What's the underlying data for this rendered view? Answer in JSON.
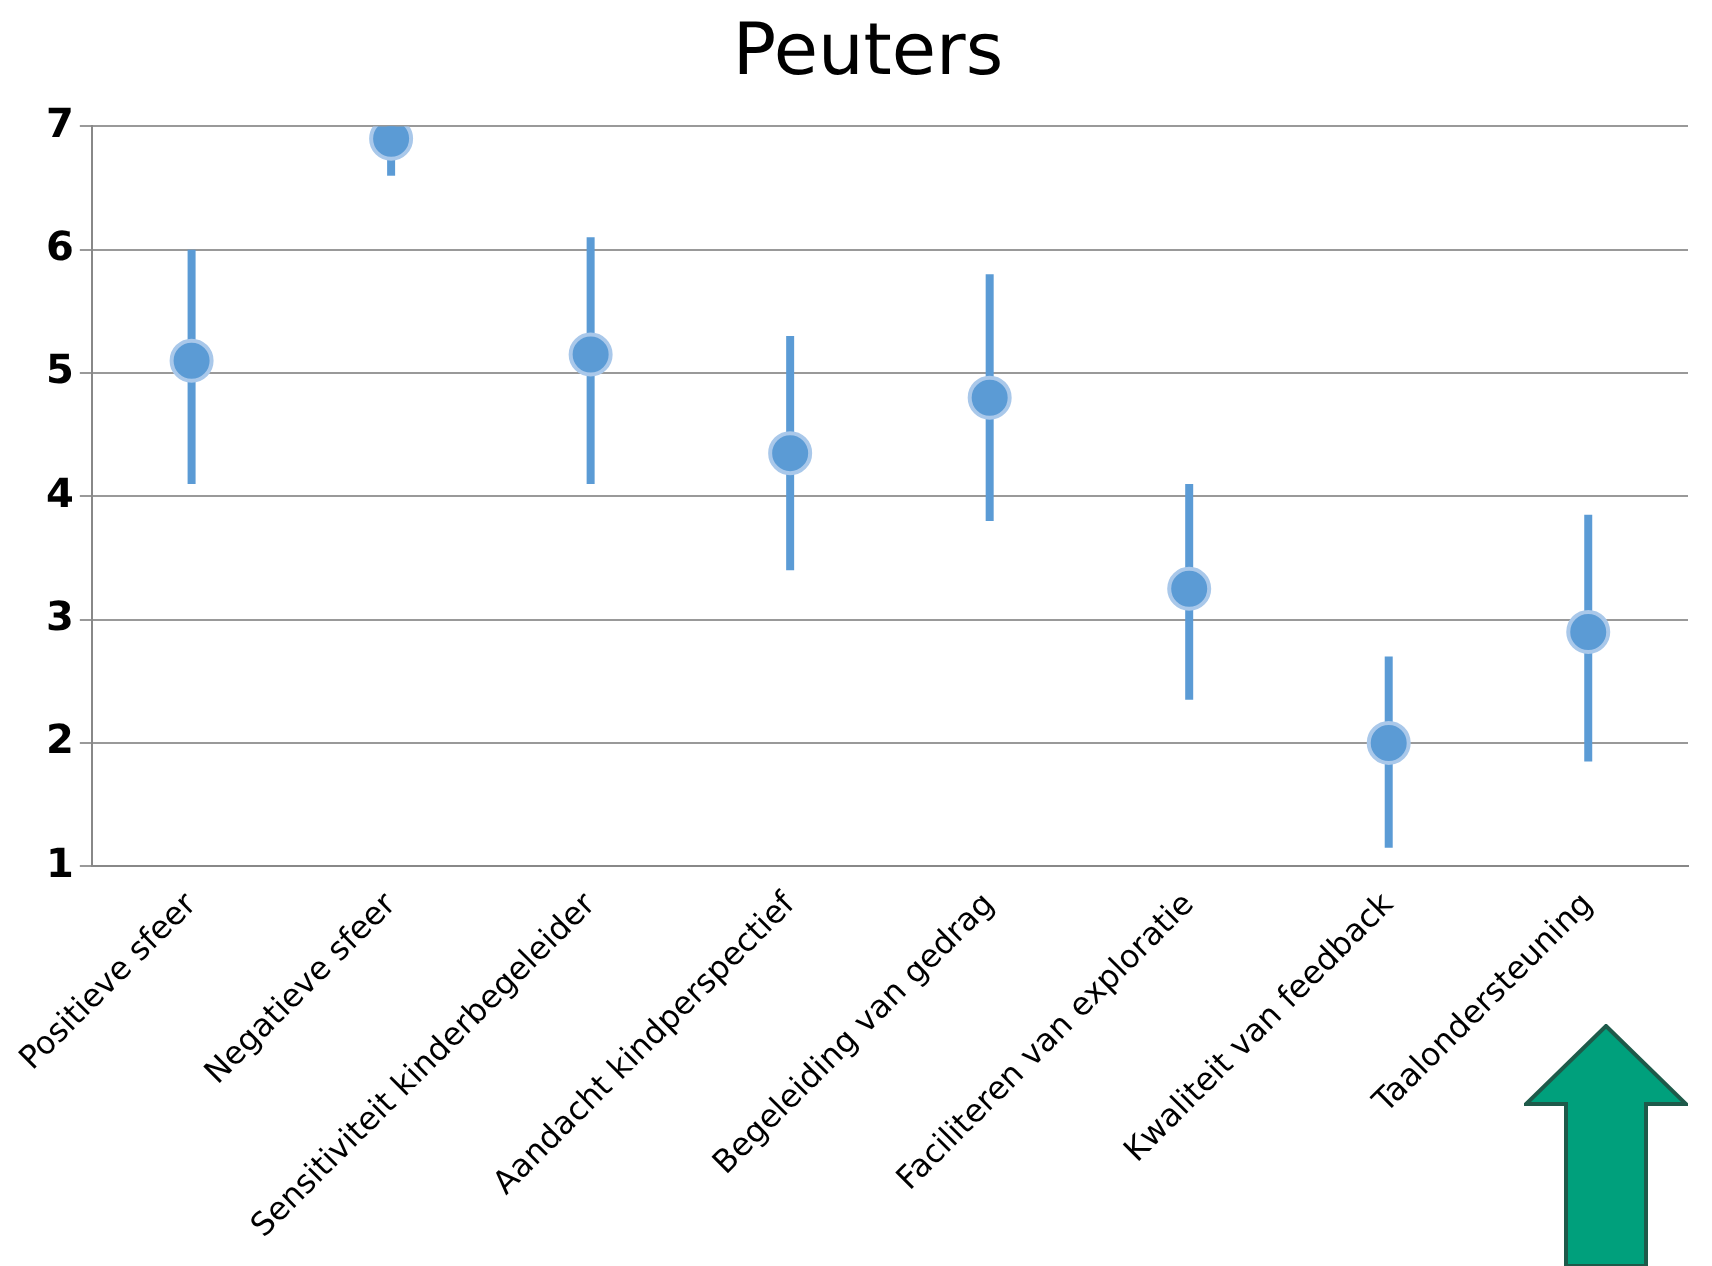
{
  "chart_data": {
    "type": "scatter",
    "title": "Peuters",
    "categories": [
      "Positieve sfeer",
      "Negatieve sfeer",
      "Sensitiviteit kinderbegeleider",
      "Aandacht kindperspectief",
      "Begeleiding van gedrag",
      "Faciliteren van exploratie",
      "Kwaliteit van feedback",
      "Taalondersteuning"
    ],
    "series": [
      {
        "color": "#5b9bd5",
        "values": [
          5.1,
          6.9,
          5.15,
          4.35,
          4.8,
          3.25,
          2.0,
          2.9
        ],
        "errors": [
          [
            4.1,
            6.0
          ],
          [
            6.6,
            7.0
          ],
          [
            4.1,
            6.1
          ],
          [
            3.4,
            5.3
          ],
          [
            3.8,
            5.8
          ],
          [
            2.35,
            4.1
          ],
          [
            1.15,
            2.7
          ],
          [
            1.85,
            3.85
          ]
        ]
      }
    ],
    "ylim": [
      1,
      7
    ],
    "yticks": [
      1,
      2,
      3,
      4,
      5,
      6,
      7
    ],
    "grid": "y",
    "legend": false,
    "marker": "circle"
  }
}
